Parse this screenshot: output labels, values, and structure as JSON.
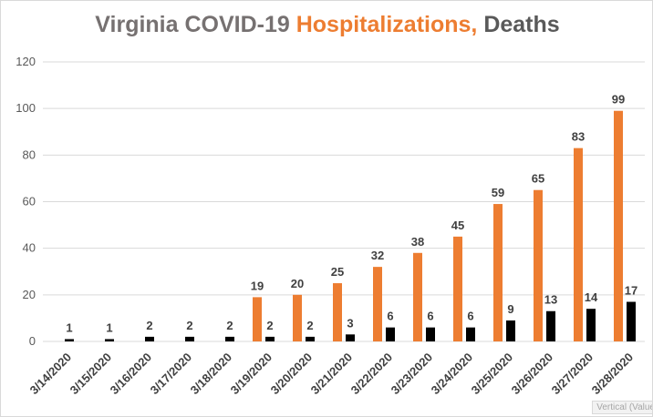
{
  "chart_data": {
    "type": "bar",
    "title_parts": [
      {
        "text": "Virginia COVID-19 ",
        "color": "#767171"
      },
      {
        "text": "Hospitalizations,",
        "color": "#ED7D31"
      },
      {
        "text": " Deaths",
        "color": "#595959"
      }
    ],
    "categories": [
      "3/14/2020",
      "3/15/2020",
      "3/16/2020",
      "3/17/2020",
      "3/18/2020",
      "3/19/2020",
      "3/20/2020",
      "3/21/2020",
      "3/22/2020",
      "3/23/2020",
      "3/24/2020",
      "3/25/2020",
      "3/26/2020",
      "3/27/2020",
      "3/28/2020"
    ],
    "series": [
      {
        "values": [
          null,
          null,
          null,
          null,
          null,
          19,
          20,
          25,
          32,
          38,
          45,
          59,
          65,
          83,
          99
        ],
        "color": "#ED7D31"
      },
      {
        "values": [
          1,
          1,
          2,
          2,
          2,
          2,
          2,
          3,
          6,
          6,
          6,
          9,
          13,
          14,
          17
        ],
        "color": "#000000"
      }
    ],
    "ylim": [
      0,
      120
    ],
    "yticks": [
      0,
      20,
      40,
      60,
      80,
      100,
      120
    ],
    "grid": true,
    "data_labels": true,
    "axis_tag": "Vertical (Value"
  }
}
